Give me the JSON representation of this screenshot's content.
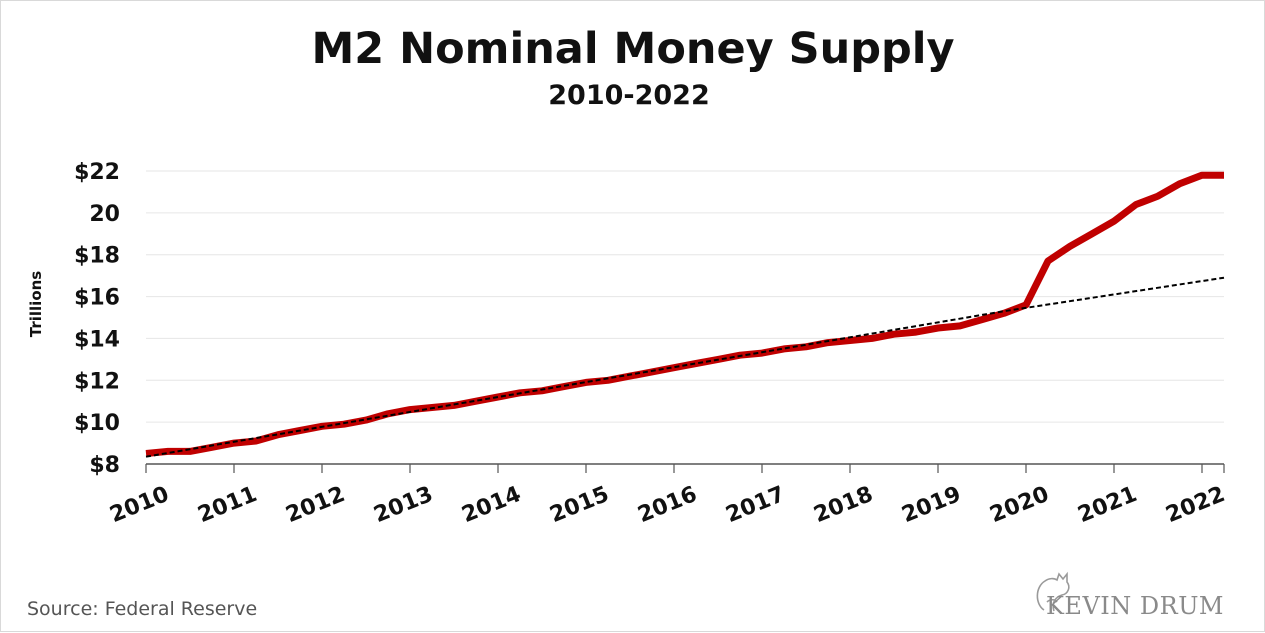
{
  "chart_data": {
    "type": "line",
    "title": "M2 Nominal Money Supply",
    "subtitle": "2010-2022",
    "ylabel": "Trillions",
    "xlabel": "",
    "source": "Source: Federal Reserve",
    "logo_text": "KEVIN DRUM",
    "xlim": [
      2010,
      2022.25
    ],
    "ylim": [
      8,
      22
    ],
    "x_ticks": [
      "2010",
      "2011",
      "2012",
      "2013",
      "2014",
      "2015",
      "2016",
      "2017",
      "2018",
      "2019",
      "2020",
      "2021",
      "2022"
    ],
    "y_ticks": [
      "$22",
      "20",
      "$18",
      "$16",
      "$14",
      "$12",
      "$10",
      "$8"
    ],
    "y_tick_values": [
      22,
      20,
      18,
      16,
      14,
      12,
      10,
      8
    ],
    "grid": "horizontal",
    "series": [
      {
        "color": "#c00000",
        "style": "solid",
        "x": [
          2010.0,
          2010.25,
          2010.5,
          2010.75,
          2011.0,
          2011.25,
          2011.5,
          2011.75,
          2012.0,
          2012.25,
          2012.5,
          2012.75,
          2013.0,
          2013.25,
          2013.5,
          2013.75,
          2014.0,
          2014.25,
          2014.5,
          2014.75,
          2015.0,
          2015.25,
          2015.5,
          2015.75,
          2016.0,
          2016.25,
          2016.5,
          2016.75,
          2017.0,
          2017.25,
          2017.5,
          2017.75,
          2018.0,
          2018.25,
          2018.5,
          2018.75,
          2019.0,
          2019.25,
          2019.5,
          2019.75,
          2020.0,
          2020.25,
          2020.5,
          2020.75,
          2021.0,
          2021.25,
          2021.5,
          2021.75,
          2022.0,
          2022.25
        ],
        "values": [
          8.5,
          8.6,
          8.6,
          8.8,
          9.0,
          9.1,
          9.4,
          9.6,
          9.8,
          9.9,
          10.1,
          10.4,
          10.6,
          10.7,
          10.8,
          11.0,
          11.2,
          11.4,
          11.5,
          11.7,
          11.9,
          12.0,
          12.2,
          12.4,
          12.6,
          12.8,
          13.0,
          13.2,
          13.3,
          13.5,
          13.6,
          13.8,
          13.9,
          14.0,
          14.2,
          14.3,
          14.5,
          14.6,
          14.9,
          15.2,
          15.6,
          17.7,
          18.4,
          19.0,
          19.6,
          20.4,
          20.8,
          21.4,
          21.8,
          21.8
        ]
      },
      {
        "color": "#000000",
        "style": "dashed",
        "x": [
          2010.0,
          2019.75,
          2022.25
        ],
        "values": [
          8.35,
          15.3,
          16.9
        ]
      }
    ]
  }
}
